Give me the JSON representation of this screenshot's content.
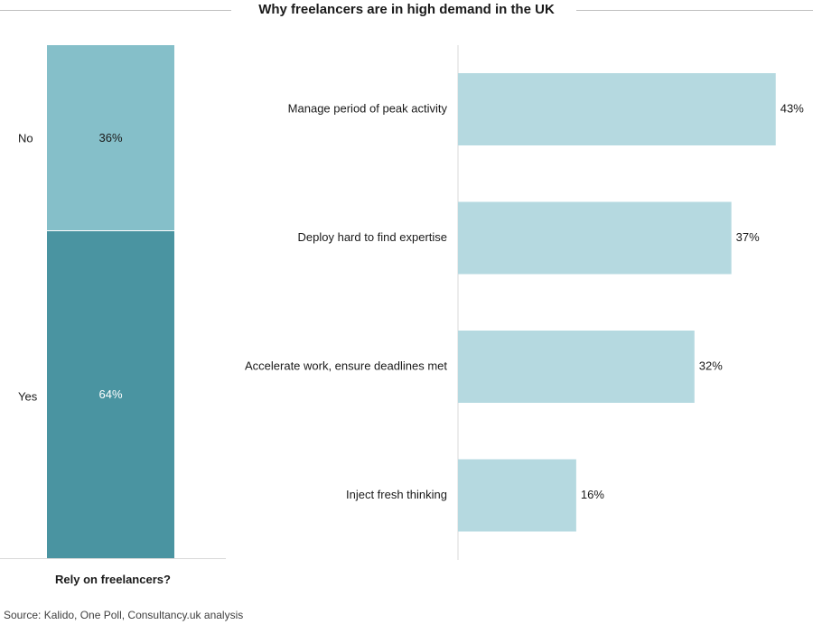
{
  "title": "Why freelancers are in high demand in the UK",
  "source": "Source: Kalido, One Poll, Consultancy.uk analysis",
  "chart_data": [
    {
      "type": "bar",
      "stacked": true,
      "xlabel": "Rely on freelancers?",
      "categories": [
        "No",
        "Yes"
      ],
      "values": [
        36,
        64
      ],
      "value_labels": [
        "36%",
        "64%"
      ],
      "ylim": [
        0,
        100
      ],
      "colors": [
        "#85bfc9",
        "#4a94a1"
      ],
      "grid": false
    },
    {
      "type": "bar",
      "orientation": "horizontal",
      "categories": [
        "Manage period of peak activity",
        "Deploy hard to find expertise",
        "Accelerate work, ensure deadlines met",
        "Inject fresh thinking"
      ],
      "values": [
        43,
        37,
        32,
        16
      ],
      "value_labels": [
        "43%",
        "37%",
        "32%",
        "16%"
      ],
      "xlim": [
        0,
        45
      ],
      "color": "#b5d9e0",
      "grid": false
    }
  ]
}
